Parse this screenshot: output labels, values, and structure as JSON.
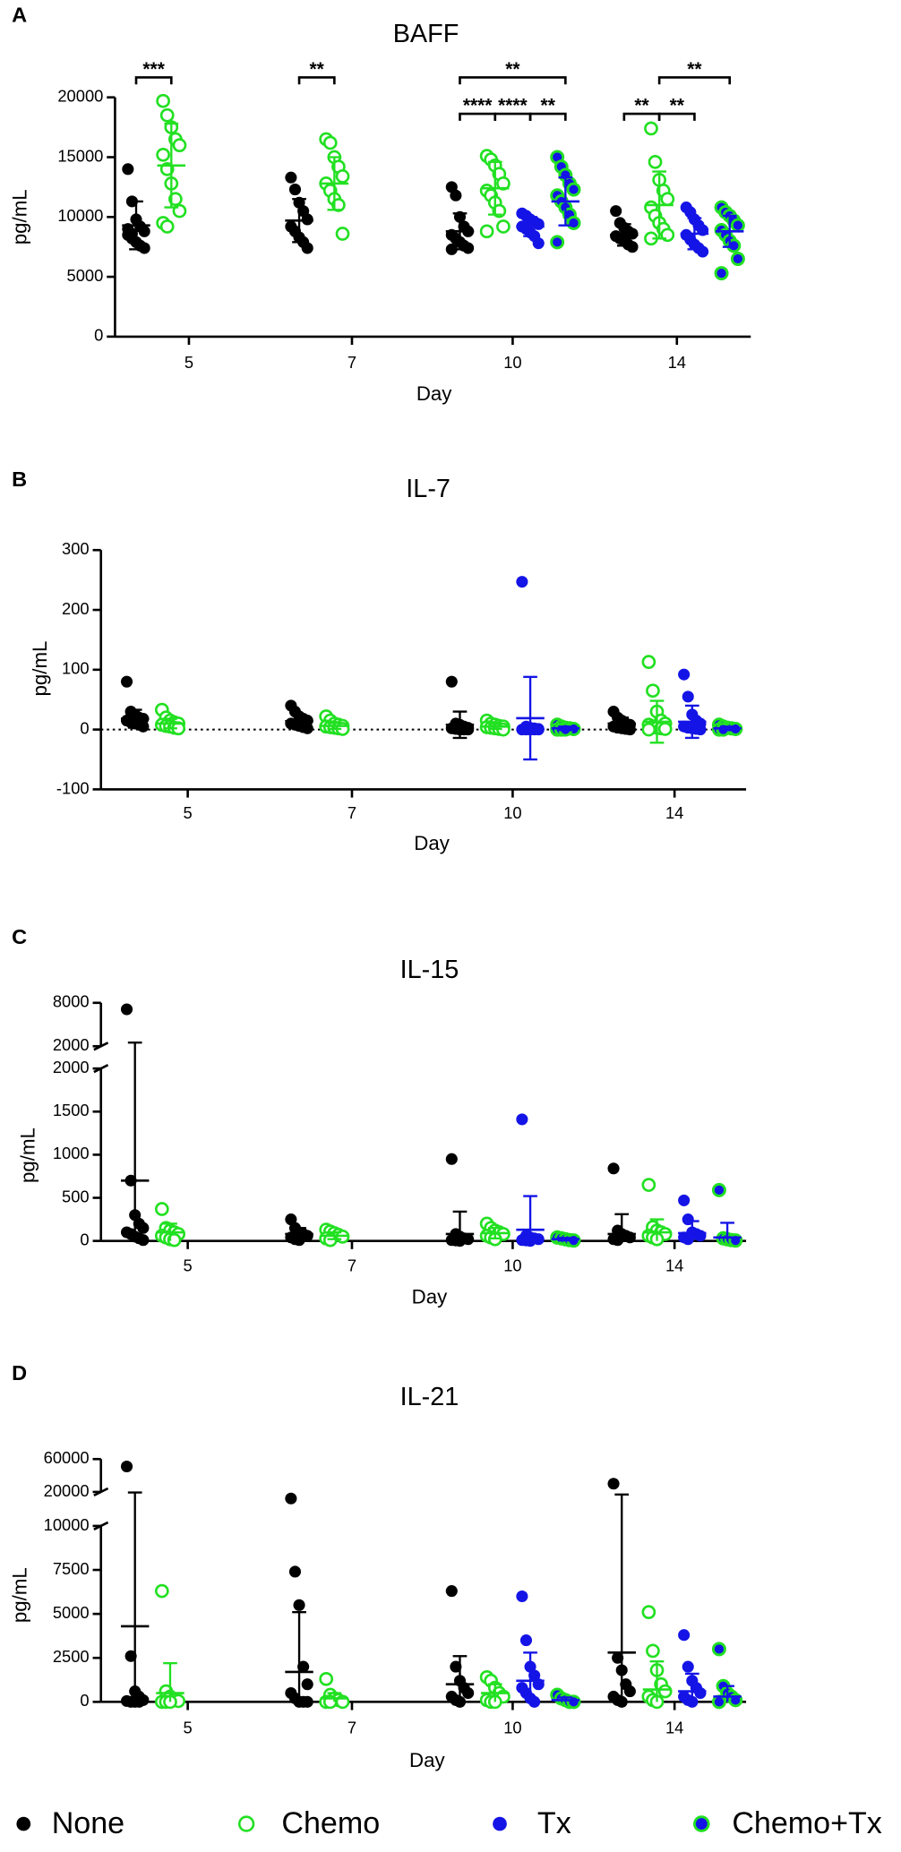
{
  "chart_data": [
    {
      "type": "scatter",
      "panel": "A",
      "title": "BAFF",
      "xlabel": "Day",
      "ylabel": "pg/mL",
      "categories": [
        "5",
        "7",
        "10",
        "14"
      ],
      "ylim": [
        0,
        20000
      ],
      "yticks": [
        0,
        5000,
        10000,
        15000,
        20000
      ],
      "series": [
        {
          "name": "None",
          "color": "#000000",
          "marker": "filled",
          "values": [
            [
              14000,
              11300,
              9800,
              9200,
              8800,
              8500,
              8200,
              7900,
              7600,
              7400,
              9000,
              8600
            ],
            [
              13300,
              12300,
              11200,
              10500,
              9800,
              9200,
              8800,
              8300,
              7900,
              7400
            ],
            [
              12500,
              11800,
              10000,
              9200,
              8800,
              8500,
              8200,
              7900,
              7600,
              7400,
              7300
            ],
            [
              10500,
              9500,
              9100,
              8800,
              8600,
              8400,
              8200,
              8000,
              7700,
              7500
            ]
          ],
          "mean": [
            9300,
            9700,
            8800,
            8500
          ],
          "sd": [
            2000,
            1800,
            1500,
            900
          ]
        },
        {
          "name": "Chemo",
          "color": "#22e022",
          "marker": "open",
          "values": [
            [
              19700,
              18500,
              17500,
              16500,
              16000,
              15200,
              14000,
              12800,
              11500,
              10500,
              9500,
              9200
            ],
            [
              16500,
              16200,
              15000,
              14200,
              13400,
              12800,
              12200,
              11500,
              11000,
              8600
            ],
            [
              15100,
              14800,
              14300,
              13600,
              12800,
              12200,
              11800,
              11200,
              10500,
              9200,
              8800
            ],
            [
              17400,
              14600,
              13100,
              12200,
              11500,
              10800,
              10100,
              9500,
              9000,
              8500,
              8200
            ]
          ],
          "mean": [
            14300,
            12800,
            12400,
            11000
          ],
          "sd": [
            3500,
            2200,
            2200,
            2800
          ]
        },
        {
          "name": "Tx",
          "color": "#1414e6",
          "marker": "filled",
          "values": [
            null,
            null,
            [
              10300,
              10100,
              9800,
              9600,
              9400,
              9200,
              9000,
              8700,
              8400,
              7800
            ],
            [
              10800,
              10400,
              9800,
              9300,
              8900,
              8500,
              8100,
              7700,
              7400,
              7100
            ]
          ],
          "mean": [
            null,
            null,
            9200,
            8600
          ],
          "sd": [
            null,
            null,
            800,
            1300
          ]
        },
        {
          "name": "Chemo+Tx",
          "color": "#1414e6",
          "edgecolor": "#22e022",
          "marker": "filled",
          "values": [
            null,
            null,
            [
              15000,
              14200,
              13500,
              12800,
              12300,
              11800,
              11300,
              10800,
              10200,
              9500,
              7900
            ],
            [
              10800,
              10400,
              10100,
              9700,
              9300,
              8900,
              8500,
              8000,
              7600,
              6500,
              5300
            ]
          ],
          "mean": [
            null,
            null,
            11300,
            8800
          ],
          "sd": [
            null,
            null,
            2000,
            1300
          ]
        }
      ],
      "annotations": [
        {
          "label": "***",
          "category": "5",
          "from": "None",
          "to": "Chemo"
        },
        {
          "label": "**",
          "category": "7",
          "from": "None",
          "to": "Chemo"
        },
        {
          "label": "**",
          "category": "10",
          "from": "None",
          "to": "Chemo+Tx"
        },
        {
          "label": "****",
          "category": "10",
          "from": "None",
          "to": "Chemo"
        },
        {
          "label": "****",
          "category": "10",
          "from": "Chemo",
          "to": "Tx"
        },
        {
          "label": "**",
          "category": "10",
          "from": "Tx",
          "to": "Chemo+Tx"
        },
        {
          "label": "**",
          "category": "14",
          "from": "None",
          "to": "Chemo"
        },
        {
          "label": "**",
          "category": "14",
          "from": "Chemo",
          "to": "Tx"
        },
        {
          "label": "**",
          "category": "14",
          "from": "Chemo",
          "to": "Chemo+Tx"
        }
      ]
    },
    {
      "type": "scatter",
      "panel": "B",
      "title": "IL-7",
      "xlabel": "Day",
      "ylabel": "pg/mL",
      "categories": [
        "5",
        "7",
        "10",
        "14"
      ],
      "ylim": [
        -100,
        300
      ],
      "yticks": [
        -100,
        0,
        100,
        200,
        300
      ],
      "zero_line": true,
      "series": [
        {
          "name": "None",
          "color": "#000000",
          "marker": "filled",
          "values": [
            [
              80,
              30,
              25,
              20,
              18,
              15,
              12,
              10,
              8,
              5
            ],
            [
              40,
              30,
              22,
              18,
              15,
              10,
              8,
              6,
              4,
              2
            ],
            [
              80,
              10,
              8,
              5,
              3,
              2,
              1,
              0,
              0,
              0
            ],
            [
              30,
              20,
              15,
              10,
              8,
              5,
              3,
              2,
              1,
              0
            ]
          ],
          "mean": [
            18,
            14,
            8,
            10
          ],
          "sd": [
            15,
            10,
            22,
            10
          ]
        },
        {
          "name": "Chemo",
          "color": "#22e022",
          "marker": "open",
          "values": [
            [
              33,
              20,
              15,
              12,
              10,
              8,
              6,
              5,
              3,
              2
            ],
            [
              22,
              15,
              10,
              8,
              6,
              5,
              4,
              3,
              2,
              1
            ],
            [
              15,
              10,
              8,
              6,
              5,
              4,
              3,
              2,
              1,
              0
            ],
            [
              113,
              65,
              30,
              15,
              10,
              8,
              5,
              3,
              2,
              1,
              0
            ]
          ],
          "mean": [
            10,
            6,
            5,
            13
          ],
          "sd": [
            8,
            5,
            4,
            35
          ]
        },
        {
          "name": "Tx",
          "color": "#1414e6",
          "marker": "filled",
          "values": [
            null,
            null,
            [
              247,
              5,
              3,
              2,
              1,
              0,
              0,
              0,
              0,
              0
            ],
            [
              92,
              55,
              25,
              15,
              10,
              5,
              3,
              2,
              1,
              0
            ]
          ],
          "mean": [
            null,
            null,
            19,
            13
          ],
          "sd": [
            null,
            null,
            69,
            27
          ]
        },
        {
          "name": "Chemo+Tx",
          "color": "#1414e6",
          "edgecolor": "#22e022",
          "marker": "filled",
          "values": [
            null,
            null,
            [
              8,
              5,
              3,
              2,
              1,
              0,
              0,
              0
            ],
            [
              8,
              5,
              3,
              2,
              1,
              0,
              0
            ]
          ],
          "mean": [
            null,
            null,
            2,
            2
          ],
          "sd": [
            null,
            null,
            3,
            3
          ]
        }
      ]
    },
    {
      "type": "scatter",
      "panel": "C",
      "title": "IL-15",
      "xlabel": "Day",
      "ylabel": "pg/mL",
      "categories": [
        "5",
        "7",
        "10",
        "14"
      ],
      "ylim": [
        0,
        2000
      ],
      "yticks": [
        0,
        500,
        1000,
        1500,
        2000
      ],
      "upper": {
        "ylim": [
          2000,
          8000
        ],
        "yticks": [
          2000,
          8000
        ]
      },
      "series": [
        {
          "name": "None",
          "color": "#000000",
          "marker": "filled",
          "values": [
            [
              7100,
              700,
              300,
              200,
              150,
              100,
              80,
              50,
              30,
              10
            ],
            [
              250,
              150,
              100,
              80,
              60,
              40,
              20,
              10
            ],
            [
              950,
              80,
              50,
              30,
              20,
              10,
              5,
              0
            ],
            [
              840,
              120,
              80,
              60,
              40,
              20,
              10
            ]
          ],
          "mean": [
            700,
            80,
            80,
            80
          ],
          "sd": [
            1800,
            70,
            260,
            230
          ]
        },
        {
          "name": "Chemo",
          "color": "#22e022",
          "marker": "open",
          "values": [
            [
              370,
              150,
              120,
              100,
              80,
              60,
              40,
              20,
              10
            ],
            [
              130,
              110,
              90,
              70,
              50,
              30,
              10
            ],
            [
              200,
              150,
              120,
              100,
              80,
              60,
              40,
              20
            ],
            [
              650,
              160,
              120,
              100,
              80,
              60,
              40,
              20
            ]
          ],
          "mean": [
            100,
            60,
            90,
            100
          ],
          "sd": [
            100,
            40,
            60,
            150
          ]
        },
        {
          "name": "Tx",
          "color": "#1414e6",
          "marker": "filled",
          "values": [
            null,
            null,
            [
              1410,
              60,
              40,
              30,
              20,
              10,
              5,
              0
            ],
            [
              470,
              250,
              100,
              80,
              60,
              40,
              20
            ]
          ],
          "mean": [
            null,
            null,
            130,
            90
          ],
          "sd": [
            null,
            null,
            390,
            140
          ]
        },
        {
          "name": "Chemo+Tx",
          "color": "#1414e6",
          "edgecolor": "#22e022",
          "marker": "filled",
          "values": [
            null,
            null,
            [
              40,
              30,
              20,
              10,
              5
            ],
            [
              590,
              30,
              20,
              10,
              5
            ]
          ],
          "mean": [
            null,
            null,
            20,
            40
          ],
          "sd": [
            null,
            null,
            15,
            170
          ]
        }
      ]
    },
    {
      "type": "scatter",
      "panel": "D",
      "title": "IL-21",
      "xlabel": "Day",
      "ylabel": "pg/mL",
      "categories": [
        "5",
        "7",
        "10",
        "14"
      ],
      "ylim": [
        0,
        10000
      ],
      "yticks": [
        0,
        2500,
        5000,
        7500,
        10000
      ],
      "upper": {
        "ylim": [
          20000,
          60000
        ],
        "yticks": [
          20000,
          60000
        ]
      },
      "series": [
        {
          "name": "None",
          "color": "#000000",
          "marker": "filled",
          "values": [
            [
              51000,
              2600,
              600,
              300,
              100,
              50,
              0,
              0,
              0
            ],
            [
              12000,
              7400,
              5500,
              2000,
              1000,
              500,
              200,
              0,
              0,
              0
            ],
            [
              6300,
              2000,
              1200,
              800,
              500,
              300,
              100,
              0
            ],
            [
              30000,
              2500,
              1800,
              1000,
              600,
              300,
              100,
              0
            ]
          ],
          "mean": [
            4300,
            1700,
            1000,
            2800
          ],
          "sd": [
            15000,
            3400,
            1600,
            14000
          ]
        },
        {
          "name": "Chemo",
          "color": "#22e022",
          "marker": "open",
          "values": [
            [
              6300,
              600,
              300,
              100,
              50,
              0,
              0,
              0
            ],
            [
              1300,
              400,
              200,
              100,
              0,
              0,
              0
            ],
            [
              1400,
              1200,
              800,
              500,
              300,
              100,
              0,
              0
            ],
            [
              5100,
              2900,
              1800,
              1000,
              600,
              300,
              100,
              0
            ]
          ],
          "mean": [
            500,
            200,
            500,
            700
          ],
          "sd": [
            1700,
            300,
            500,
            1600
          ]
        },
        {
          "name": "Tx",
          "color": "#1414e6",
          "marker": "filled",
          "values": [
            null,
            null,
            [
              6000,
              3500,
              2000,
              1500,
              1000,
              800,
              500,
              200,
              0
            ],
            [
              3800,
              2000,
              1200,
              800,
              500,
              300,
              100,
              0
            ]
          ],
          "mean": [
            null,
            null,
            1200,
            600
          ],
          "sd": [
            null,
            null,
            1600,
            1000
          ]
        },
        {
          "name": "Chemo+Tx",
          "color": "#1414e6",
          "edgecolor": "#22e022",
          "marker": "filled",
          "values": [
            null,
            null,
            [
              400,
              200,
              100,
              0,
              0
            ],
            [
              3000,
              900,
              500,
              300,
              100,
              0
            ]
          ],
          "mean": [
            null,
            null,
            100,
            300
          ],
          "sd": [
            null,
            null,
            150,
            600
          ]
        }
      ]
    }
  ]
}
